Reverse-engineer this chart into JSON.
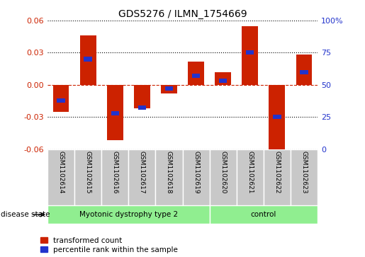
{
  "title": "GDS5276 / ILMN_1754669",
  "samples": [
    "GSM1102614",
    "GSM1102615",
    "GSM1102616",
    "GSM1102617",
    "GSM1102618",
    "GSM1102619",
    "GSM1102620",
    "GSM1102621",
    "GSM1102622",
    "GSM1102623"
  ],
  "red_values": [
    -0.025,
    0.046,
    -0.052,
    -0.022,
    -0.008,
    0.022,
    0.012,
    0.055,
    -0.065,
    0.028
  ],
  "blue_values_pct": [
    38,
    70,
    28,
    32,
    47,
    57,
    53,
    75,
    25,
    60
  ],
  "ylim": [
    -0.06,
    0.06
  ],
  "yticks": [
    -0.06,
    -0.03,
    0,
    0.03,
    0.06
  ],
  "right_yticks": [
    0,
    25,
    50,
    75,
    100
  ],
  "right_ylim": [
    0,
    100
  ],
  "disease_groups": [
    {
      "label": "Myotonic dystrophy type 2",
      "start": 0,
      "end": 6
    },
    {
      "label": "control",
      "start": 6,
      "end": 10
    }
  ],
  "red_color": "#CC2200",
  "blue_color": "#2233CC",
  "bar_width": 0.6,
  "blue_bar_width": 0.3,
  "blue_bar_height": 0.004,
  "background_labels": "#C8C8C8",
  "green_color": "#90EE90",
  "grid_color": "#000000",
  "zero_line_color": "#CC2200",
  "legend_labels": [
    "transformed count",
    "percentile rank within the sample"
  ]
}
